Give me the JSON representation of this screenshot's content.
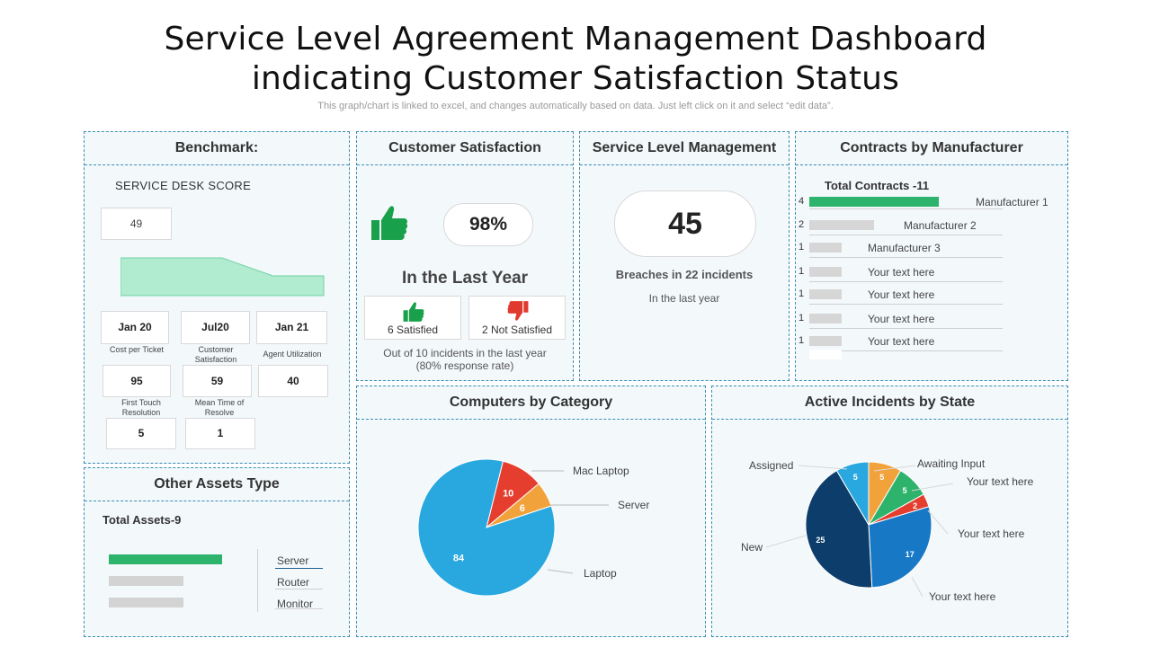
{
  "title_line1": "Service Level Agreement  Management Dashboard",
  "title_line2": "indicating Customer Satisfaction Status",
  "subtitle": "This graph/chart is linked to excel, and changes automatically based on data. Just left click on it and select “edit data”.",
  "benchmark": {
    "heading": "Benchmark:",
    "score_label": "SERVICE DESK SCORE",
    "score_value": "49",
    "area_values": [
      1.0,
      1.0,
      0.5,
      0.5
    ],
    "dates": [
      "Jan 20",
      "Jul20",
      "Jan 21"
    ],
    "metrics_row1_labels": [
      "Cost per Ticket",
      "Customer Satisfaction",
      "Agent Utilization"
    ],
    "metrics_row1_values": [
      "95",
      "59",
      "40"
    ],
    "metrics_row2_labels": [
      "First Touch Resolution",
      "Mean Time of Resolve"
    ],
    "metrics_row2_values": [
      "5",
      "1"
    ]
  },
  "customer_satisfaction": {
    "heading": "Customer Satisfaction",
    "percent": "98%",
    "period": "In the Last Year",
    "satisfied": "6 Satisfied",
    "not_satisfied": "2 Not Satisfied",
    "note_line1": "Out of 10 incidents in the last year",
    "note_line2": "(80% response rate)",
    "colors": {
      "positive": "#19a04b",
      "negative": "#e03a2f"
    }
  },
  "service_level": {
    "heading": "Service Level Management",
    "value": "45",
    "breaches": "Breaches in 22 incidents",
    "period": "In the last year"
  },
  "contracts": {
    "heading": "Contracts by Manufacturer",
    "total": "Total Contracts  -11",
    "items": [
      {
        "count": "4",
        "label": "Manufacturer 1",
        "value": 4
      },
      {
        "count": "2",
        "label": "Manufacturer 2",
        "value": 2
      },
      {
        "count": "1",
        "label": "Manufacturer 3",
        "value": 1
      },
      {
        "count": "1",
        "label": "Your text here",
        "value": 1
      },
      {
        "count": "1",
        "label": "Your text here",
        "value": 1
      },
      {
        "count": "1",
        "label": "Your text here",
        "value": 1
      },
      {
        "count": "1",
        "label": "Your text here",
        "value": 1
      }
    ],
    "colors": {
      "primary": "#2db36b",
      "secondary": "#d6d6d6"
    }
  },
  "other_assets": {
    "heading": "Other Assets Type",
    "total": "Total Assets-9",
    "items": [
      {
        "label": "Server",
        "value": 5
      },
      {
        "label": "Router",
        "value": 3.3
      },
      {
        "label": "Monitor",
        "value": 3.3
      }
    ]
  },
  "chart_data": [
    {
      "type": "pie",
      "title": "Computers by Category",
      "slices": [
        {
          "name": "Laptop",
          "value": 84,
          "color": "#29a8e0"
        },
        {
          "name": "Mac Laptop",
          "value": 10,
          "color": "#e53e2e"
        },
        {
          "name": "Server",
          "value": 6,
          "color": "#f2a23a"
        }
      ]
    },
    {
      "type": "pie",
      "title": "Active Incidents by State",
      "slices": [
        {
          "name": "Awaiting Input",
          "value": 5,
          "color": "#f2a23a"
        },
        {
          "name": "Your text here",
          "value": 5,
          "color": "#2db36b"
        },
        {
          "name": "Your text here",
          "value": 2,
          "color": "#e53e2e"
        },
        {
          "name": "Your text here",
          "value": 17,
          "color": "#1779c6"
        },
        {
          "name": "New",
          "value": 25,
          "color": "#0d3d6b"
        },
        {
          "name": "Assigned",
          "value": 5,
          "color": "#29a8e0"
        }
      ]
    }
  ]
}
